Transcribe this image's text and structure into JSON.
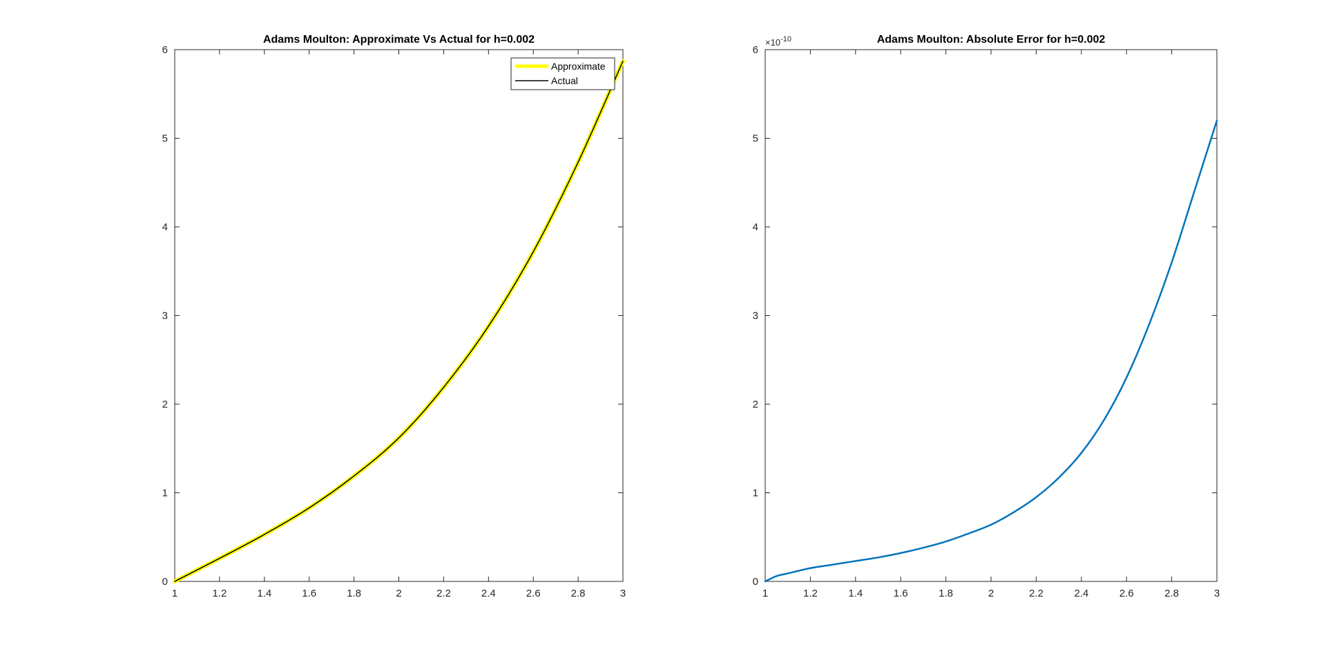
{
  "chart_data": [
    {
      "type": "line",
      "title": "Adams Moulton: Approximate Vs Actual for h=0.002",
      "xlabel": "",
      "ylabel": "",
      "xlim": [
        1,
        3
      ],
      "ylim": [
        0,
        6
      ],
      "xticks": [
        "1",
        "1.2",
        "1.4",
        "1.6",
        "1.8",
        "2",
        "2.2",
        "2.4",
        "2.6",
        "2.8",
        "3"
      ],
      "yticks": [
        "0",
        "1",
        "2",
        "3",
        "4",
        "5",
        "6"
      ],
      "legend_position": "top-right",
      "grid": false,
      "x": [
        1.0,
        1.2,
        1.4,
        1.6,
        1.8,
        2.0,
        2.2,
        2.4,
        2.6,
        2.8,
        3.0
      ],
      "series": [
        {
          "name": "Approximate",
          "color": "#FFFF00",
          "values": [
            0.0,
            0.26,
            0.53,
            0.83,
            1.19,
            1.62,
            2.19,
            2.88,
            3.72,
            4.73,
            5.87
          ]
        },
        {
          "name": "Actual",
          "color": "#000000",
          "values": [
            0.0,
            0.26,
            0.53,
            0.83,
            1.19,
            1.62,
            2.19,
            2.88,
            3.72,
            4.73,
            5.87
          ]
        }
      ]
    },
    {
      "type": "line",
      "title": "Adams Moulton: Absolute Error for h=0.002",
      "xlabel": "",
      "ylabel": "",
      "xlim": [
        1,
        3
      ],
      "ylim": [
        0,
        6e-10
      ],
      "y_exponent_label": "×10",
      "y_exponent_power": "-10",
      "xticks": [
        "1",
        "1.2",
        "1.4",
        "1.6",
        "1.8",
        "2",
        "2.2",
        "2.4",
        "2.6",
        "2.8",
        "3"
      ],
      "yticks": [
        "0",
        "1",
        "2",
        "3",
        "4",
        "5",
        "6"
      ],
      "grid": false,
      "x": [
        1.0,
        1.05,
        1.1,
        1.2,
        1.3,
        1.4,
        1.5,
        1.6,
        1.7,
        1.8,
        1.9,
        2.0,
        2.1,
        2.2,
        2.3,
        2.4,
        2.5,
        2.6,
        2.7,
        2.8,
        2.9,
        3.0
      ],
      "series": [
        {
          "color": "#0072BD",
          "values": [
            0.0,
            6e-12,
            9e-12,
            1.5e-11,
            1.9e-11,
            2.3e-11,
            2.7e-11,
            3.2e-11,
            3.8e-11,
            4.5e-11,
            5.4e-11,
            6.4e-11,
            7.8e-11,
            9.5e-11,
            1.17e-10,
            1.45e-10,
            1.82e-10,
            2.3e-10,
            2.9e-10,
            3.6e-10,
            4.4e-10,
            5.2e-10
          ]
        }
      ]
    }
  ]
}
